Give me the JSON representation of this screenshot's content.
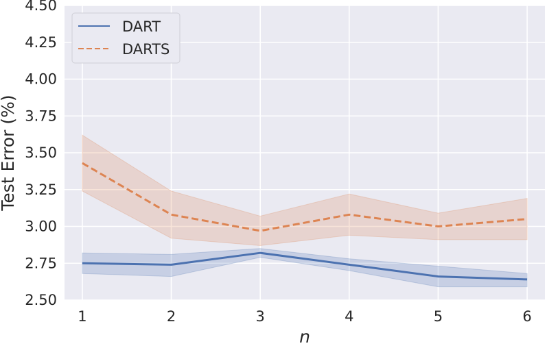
{
  "chart_data": {
    "type": "line",
    "xlabel": "n",
    "ylabel": "Test Error (%)",
    "x": [
      1,
      2,
      3,
      4,
      5,
      6
    ],
    "xlim": [
      0.8,
      6.2
    ],
    "ylim": [
      2.5,
      4.5
    ],
    "xticks": [
      "1",
      "2",
      "3",
      "4",
      "5",
      "6"
    ],
    "yticks": [
      "2.50",
      "2.75",
      "3.00",
      "3.25",
      "3.50",
      "3.75",
      "4.00",
      "4.25",
      "4.50"
    ],
    "grid": true,
    "legend_position": "top-left",
    "series": [
      {
        "name": "DART",
        "color": "#4c72b0",
        "line_style": "solid",
        "values": [
          2.75,
          2.74,
          2.82,
          2.74,
          2.66,
          2.64
        ],
        "band_lower": [
          2.68,
          2.66,
          2.79,
          2.7,
          2.59,
          2.59
        ],
        "band_upper": [
          2.82,
          2.81,
          2.85,
          2.78,
          2.73,
          2.68
        ]
      },
      {
        "name": "DARTS",
        "color": "#dd8452",
        "line_style": "dashed",
        "values": [
          3.43,
          3.08,
          2.97,
          3.08,
          3.0,
          3.05
        ],
        "band_lower": [
          3.24,
          2.92,
          2.87,
          2.94,
          2.91,
          2.91
        ],
        "band_upper": [
          3.62,
          3.24,
          3.07,
          3.22,
          3.09,
          3.19
        ]
      }
    ]
  }
}
